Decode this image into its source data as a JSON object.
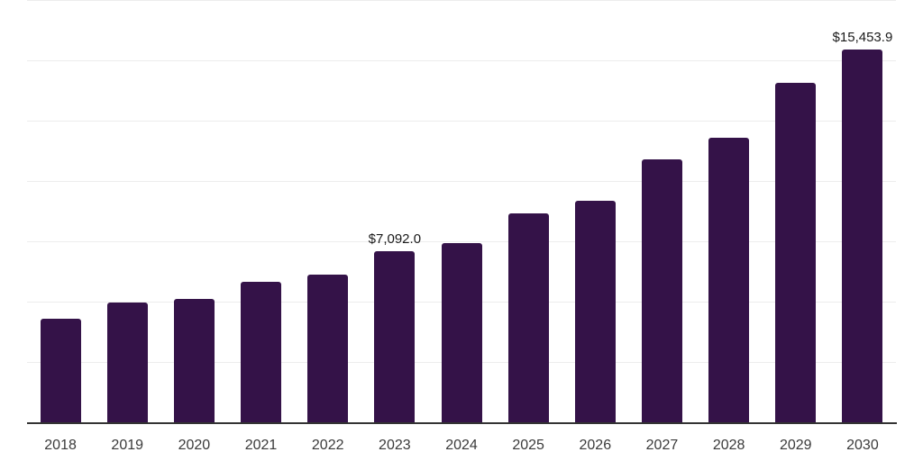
{
  "chart": {
    "background_color": "#ffffff",
    "bar_color": "#341248",
    "grid_color": "#ededed",
    "axis_line_color": "#333333",
    "tick_label_color": "#3a3a3a",
    "data_label_color": "#1a1a1a"
  },
  "chart_data": {
    "type": "bar",
    "title": "",
    "xlabel": "",
    "ylabel": "",
    "categories": [
      "2018",
      "2019",
      "2020",
      "2021",
      "2022",
      "2023",
      "2024",
      "2025",
      "2026",
      "2027",
      "2028",
      "2029",
      "2030"
    ],
    "values": [
      4290,
      4960,
      5110,
      5820,
      6120,
      7092.0,
      7410,
      8660,
      9180,
      10900,
      11800,
      14070,
      15453.9
    ],
    "data_labels": {
      "2023": "$7,092.0",
      "2030": "$15,453.9"
    },
    "ylim": [
      0,
      17500
    ],
    "gridline_step": 2500,
    "grid": true,
    "legend": false,
    "x_tick_labels": [
      "2018",
      "2019",
      "2020",
      "2021",
      "2022",
      "2023",
      "2024",
      "2025",
      "2026",
      "2027",
      "2028",
      "2029",
      "2030"
    ],
    "y_tick_labels": []
  }
}
